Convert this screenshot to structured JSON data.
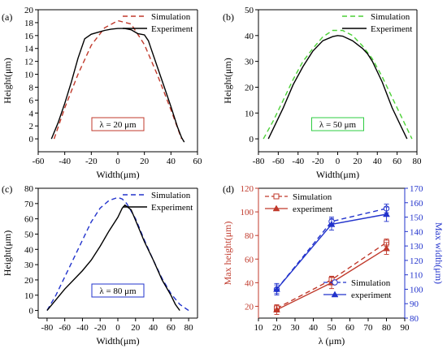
{
  "chart_data": [
    {
      "panel": "(a)",
      "type": "line",
      "xlabel": "Width(μm)",
      "ylabel": "Height(μm)",
      "xlim": [
        -60,
        60
      ],
      "ylim": [
        -2,
        20
      ],
      "xticks": [
        -60,
        -40,
        -20,
        0,
        20,
        40,
        60
      ],
      "yticks": [
        0,
        2,
        4,
        6,
        8,
        10,
        12,
        14,
        16,
        18,
        20
      ],
      "legend_position": "top-right",
      "annotation": "λ = 20 μm",
      "annotation_color": "#c0392b",
      "series": [
        {
          "name": "Simulation",
          "style": "dashed",
          "color": "#c0392b",
          "x": [
            -48,
            -40,
            -30,
            -20,
            -10,
            0,
            10,
            20,
            30,
            40,
            48
          ],
          "y": [
            0,
            4.8,
            10.0,
            14.5,
            17.2,
            18.3,
            17.8,
            14.6,
            9.8,
            4.5,
            0
          ]
        },
        {
          "name": "Experiment",
          "style": "solid",
          "color": "#000000",
          "x": [
            -50,
            -45,
            -40,
            -35,
            -30,
            -25,
            -20,
            -15,
            -10,
            -5,
            0,
            5,
            10,
            15,
            20,
            23,
            25,
            30,
            35,
            40,
            45,
            48,
            50
          ],
          "y": [
            0,
            2.5,
            5.5,
            8.8,
            12.5,
            15.5,
            16.2,
            16.5,
            16.8,
            17.0,
            17.1,
            17.1,
            16.9,
            16.3,
            16.1,
            15.2,
            14.0,
            11.0,
            8.0,
            5.0,
            1.8,
            0.2,
            -0.5
          ]
        }
      ]
    },
    {
      "panel": "(b)",
      "type": "line",
      "xlabel": "Width(μm)",
      "ylabel": "Height(μm)",
      "xlim": [
        -80,
        80
      ],
      "ylim": [
        -5,
        50
      ],
      "xticks": [
        -80,
        -60,
        -40,
        -20,
        0,
        20,
        40,
        60,
        80
      ],
      "yticks": [
        0,
        10,
        20,
        30,
        40,
        50
      ],
      "legend_position": "top-right",
      "annotation": "λ = 50 μm",
      "annotation_color": "#2ecc40",
      "series": [
        {
          "name": "Simulation",
          "style": "dashed",
          "color": "#4cd137",
          "x": [
            -75,
            -65,
            -55,
            -45,
            -35,
            -25,
            -15,
            -5,
            5,
            15,
            25,
            35,
            45,
            55,
            65,
            75
          ],
          "y": [
            0,
            7,
            15,
            23,
            30,
            35,
            39.5,
            42,
            42,
            40,
            36,
            31,
            24,
            16,
            8,
            0
          ]
        },
        {
          "name": "Experiment",
          "style": "solid",
          "color": "#000000",
          "x": [
            -70,
            -65,
            -55,
            -45,
            -35,
            -25,
            -15,
            -5,
            0,
            5,
            15,
            25,
            30,
            35,
            45,
            55,
            65,
            70
          ],
          "y": [
            0,
            4,
            12,
            21,
            28,
            34,
            38,
            39.6,
            40,
            39.8,
            38,
            35,
            33,
            30,
            22,
            12,
            4,
            0
          ]
        }
      ]
    },
    {
      "panel": "(c)",
      "type": "line",
      "xlabel": "Width(μm)",
      "ylabel": "Height(μm)",
      "xlim": [
        -90,
        90
      ],
      "ylim": [
        -5,
        80
      ],
      "xticks": [
        -80,
        -60,
        -40,
        -20,
        0,
        20,
        40,
        60,
        80
      ],
      "yticks": [
        0,
        10,
        20,
        30,
        40,
        50,
        60,
        70,
        80
      ],
      "legend_position": "top-right",
      "annotation": "λ = 80 μm",
      "annotation_color": "#2233cc",
      "series": [
        {
          "name": "Simulation",
          "style": "dashed",
          "color": "#2233cc",
          "x": [
            -80,
            -70,
            -60,
            -50,
            -40,
            -30,
            -20,
            -10,
            0,
            5,
            10,
            20,
            30,
            40,
            50,
            60,
            70,
            80
          ],
          "y": [
            0,
            10,
            22,
            34,
            46,
            58,
            67,
            72,
            74,
            73,
            70,
            60,
            46,
            33,
            21,
            11,
            4,
            0
          ]
        },
        {
          "name": "Experiment",
          "style": "solid",
          "color": "#000000",
          "x": [
            -80,
            -70,
            -60,
            -50,
            -40,
            -30,
            -20,
            -10,
            0,
            5,
            8,
            15,
            20,
            30,
            40,
            50,
            60,
            65,
            70
          ],
          "y": [
            0,
            7,
            14,
            20,
            26,
            33,
            42,
            52,
            61,
            67,
            69,
            66,
            59,
            45,
            33,
            20,
            10,
            4,
            0
          ]
        }
      ]
    },
    {
      "panel": "(d)",
      "type": "line",
      "xlabel": "λ (μm)",
      "ylabel": "Max height(μm)",
      "ylabel_right": "Max width(μm)",
      "xlim": [
        10,
        90
      ],
      "ylim": [
        10,
        120
      ],
      "ylim_right": [
        80,
        170
      ],
      "xticks": [
        10,
        20,
        30,
        40,
        50,
        60,
        70,
        80,
        90
      ],
      "yticks": [
        20,
        40,
        60,
        80,
        100,
        120
      ],
      "yticks_right": [
        80,
        90,
        100,
        110,
        120,
        130,
        140,
        150,
        160,
        170
      ],
      "left_axis_color": "#c0392b",
      "right_axis_color": "#2233cc",
      "legend_left_position": "top-left",
      "legend_right_position": "bottom-right",
      "series": [
        {
          "name": "Simulation",
          "axis": "left",
          "style": "dashed",
          "marker": "open-square",
          "color": "#c0392b",
          "x": [
            20,
            50,
            80
          ],
          "y": [
            18.3,
            42.5,
            74
          ],
          "err": [
            3,
            3,
            3
          ]
        },
        {
          "name": "experiment",
          "axis": "left",
          "style": "solid",
          "marker": "filled-triangle",
          "color": "#c0392b",
          "x": [
            20,
            50,
            80
          ],
          "y": [
            17.1,
            40,
            69
          ],
          "err": [
            4,
            5,
            5
          ]
        },
        {
          "name": "Simulation",
          "axis": "right",
          "style": "dashed",
          "marker": "open-circle",
          "color": "#2233cc",
          "x": [
            20,
            50,
            80
          ],
          "y": [
            100,
            147,
            156
          ],
          "err": [
            3,
            3,
            3
          ]
        },
        {
          "name": "experiment",
          "axis": "right",
          "style": "solid",
          "marker": "filled-triangle",
          "color": "#2233cc",
          "x": [
            20,
            50,
            80
          ],
          "y": [
            100,
            145,
            152
          ],
          "err": [
            4,
            4,
            5
          ]
        }
      ]
    }
  ]
}
